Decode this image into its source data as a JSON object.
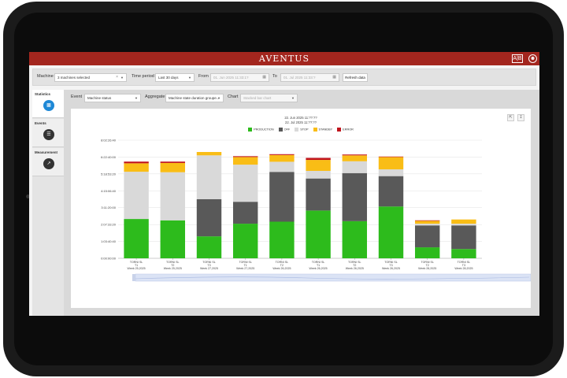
{
  "header": {
    "logo": "AVENTUS",
    "lang_icon_text": "A|B"
  },
  "filters": {
    "machine_label": "Machine",
    "machine_value": "3 machines selected",
    "period_label": "Time period",
    "period_value": "Last 30 days",
    "from_label": "From",
    "from_value": "01. Jun 2025 11:33:1?",
    "to_label": "To",
    "to_value": "01. Jul 2025 11:33:?",
    "refresh_label": "Refresh data"
  },
  "sidebar": {
    "statistics": "Statistics",
    "events": "Events",
    "measurement": "Measurement"
  },
  "controls": {
    "event_label": "Event",
    "event_value": "Machine status",
    "aggregate_label": "Aggregate",
    "aggregate_value": "Machine state duration groupe...",
    "chart_label": "Chart",
    "chart_value": "Stacked bar chart"
  },
  "date_range": {
    "start": "22. Jun 2025 11:??:??",
    "end": "22. Jul 2025 11:??:??"
  },
  "colors": {
    "PRODUCTION": "#2dbb1c",
    "OFF": "#595959",
    "STOP": "#d9d9d9",
    "STANDBY": "#f9bd16",
    "ERROR": "#c0141c"
  },
  "chart_data": {
    "type": "bar",
    "stacked": true,
    "title": "",
    "xlabel": "",
    "ylabel": "",
    "y_ticks": [
      "0:00:00:00",
      "1:03:40:40",
      "2:07:33:20",
      "3:11:20:00",
      "4:15:06:40",
      "5:18:53:20",
      "6:22:40:00",
      "8:02:26:40"
    ],
    "ylim": [
      0,
      7
    ],
    "legend_position": "top",
    "categories": [
      {
        "line1": "TORNI SL",
        "line2": "T1",
        "line3": "Week 25,2025"
      },
      {
        "line1": "TORNI SL",
        "line2": "T2",
        "line3": "Week 25,2025"
      },
      {
        "line1": "TORNI SL",
        "line2": "T3",
        "line3": "Week 27,2025"
      },
      {
        "line1": "TORNI SL",
        "line2": "T1",
        "line3": "Week 27,2025"
      },
      {
        "line1": "TORNI SL",
        "line2": "T2",
        "line3": "Week 26,2025"
      },
      {
        "line1": "TORNI SL",
        "line2": "T1",
        "line3": "Week 26,2025"
      },
      {
        "line1": "TORNI SL",
        "line2": "T2",
        "line3": "Week 26,2025"
      },
      {
        "line1": "TORNI SL",
        "line2": "T3",
        "line3": "Week 26,2025"
      },
      {
        "line1": "TORNI SL",
        "line2": "T2",
        "line3": "Week 28,2025"
      },
      {
        "line1": "TORNI SL",
        "line2": "T3",
        "line3": "Week 28,2025"
      }
    ],
    "series": [
      {
        "name": "PRODUCTION",
        "values": [
          2.33,
          2.25,
          1.3,
          2.05,
          2.17,
          2.83,
          2.2,
          3.07,
          0.65,
          0.55
        ]
      },
      {
        "name": "OFF",
        "values": [
          0,
          0,
          2.2,
          1.3,
          2.95,
          1.9,
          2.85,
          1.8,
          1.3,
          1.4
        ]
      },
      {
        "name": "STOP",
        "values": [
          2.8,
          2.85,
          2.6,
          2.2,
          0.6,
          0.45,
          0.7,
          0.4,
          0.1,
          0.1
        ]
      },
      {
        "name": "STANDBY",
        "values": [
          0.5,
          0.55,
          0.2,
          0.45,
          0.4,
          0.65,
          0.35,
          0.73,
          0.17,
          0.25
        ]
      },
      {
        "name": "ERROR",
        "values": [
          0.1,
          0.08,
          0,
          0.05,
          0.05,
          0.12,
          0.05,
          0.03,
          0.03,
          0
        ]
      }
    ]
  }
}
